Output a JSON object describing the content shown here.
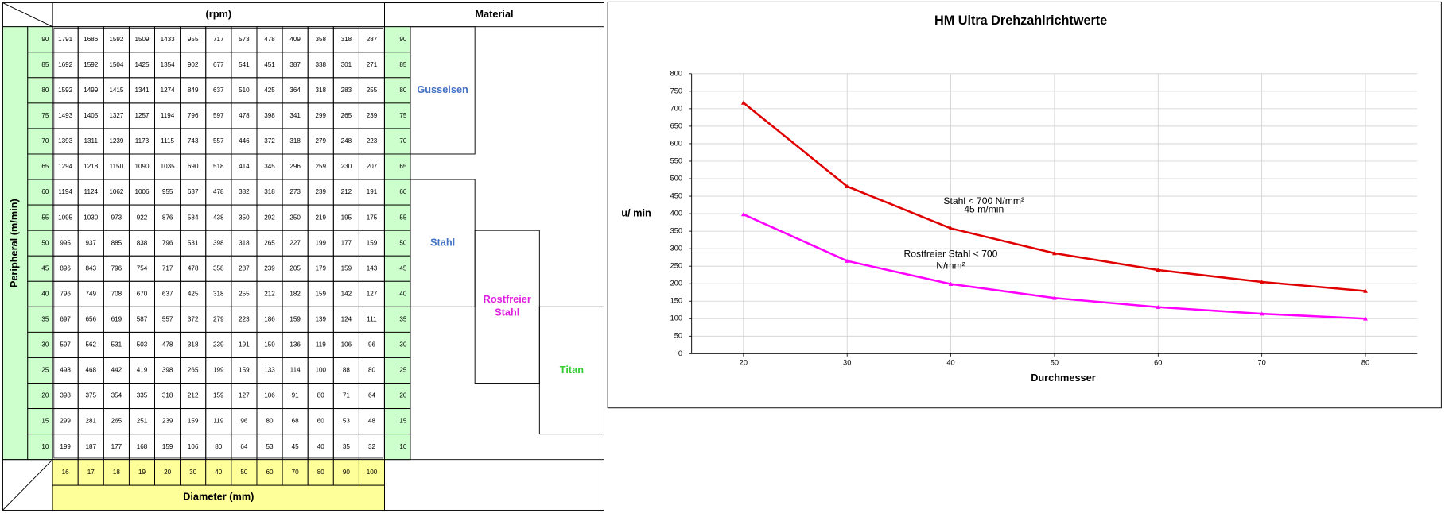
{
  "table": {
    "header_rpm": "(rpm)",
    "header_material": "Material",
    "speed_label": "Peripheral   (m/min)",
    "diameter_label": "Diameter  (mm)",
    "speeds": [
      90,
      85,
      80,
      75,
      70,
      65,
      60,
      55,
      50,
      45,
      40,
      35,
      30,
      25,
      20,
      15,
      10
    ],
    "diameters": [
      16,
      17,
      18,
      19,
      20,
      30,
      40,
      50,
      60,
      70,
      80,
      90,
      100
    ],
    "rows": [
      [
        1791,
        1686,
        1592,
        1509,
        1433,
        955,
        717,
        573,
        478,
        409,
        358,
        318,
        287
      ],
      [
        1692,
        1592,
        1504,
        1425,
        1354,
        902,
        677,
        541,
        451,
        387,
        338,
        301,
        271
      ],
      [
        1592,
        1499,
        1415,
        1341,
        1274,
        849,
        637,
        510,
        425,
        364,
        318,
        283,
        255
      ],
      [
        1493,
        1405,
        1327,
        1257,
        1194,
        796,
        597,
        478,
        398,
        341,
        299,
        265,
        239
      ],
      [
        1393,
        1311,
        1239,
        1173,
        1115,
        743,
        557,
        446,
        372,
        318,
        279,
        248,
        223
      ],
      [
        1294,
        1218,
        1150,
        1090,
        1035,
        690,
        518,
        414,
        345,
        296,
        259,
        230,
        207
      ],
      [
        1194,
        1124,
        1062,
        1006,
        955,
        637,
        478,
        382,
        318,
        273,
        239,
        212,
        191
      ],
      [
        1095,
        1030,
        973,
        922,
        876,
        584,
        438,
        350,
        292,
        250,
        219,
        195,
        175
      ],
      [
        995,
        937,
        885,
        838,
        796,
        531,
        398,
        318,
        265,
        227,
        199,
        177,
        159
      ],
      [
        896,
        843,
        796,
        754,
        717,
        478,
        358,
        287,
        239,
        205,
        179,
        159,
        143
      ],
      [
        796,
        749,
        708,
        670,
        637,
        425,
        318,
        255,
        212,
        182,
        159,
        142,
        127
      ],
      [
        697,
        656,
        619,
        587,
        557,
        372,
        279,
        223,
        186,
        159,
        139,
        124,
        111
      ],
      [
        597,
        562,
        531,
        503,
        478,
        318,
        239,
        191,
        159,
        136,
        119,
        106,
        96
      ],
      [
        498,
        468,
        442,
        419,
        398,
        265,
        199,
        159,
        133,
        114,
        100,
        88,
        80
      ],
      [
        398,
        375,
        354,
        335,
        318,
        212,
        159,
        127,
        106,
        91,
        80,
        71,
        64
      ],
      [
        299,
        281,
        265,
        251,
        239,
        159,
        119,
        96,
        80,
        68,
        60,
        53,
        48
      ],
      [
        199,
        187,
        177,
        168,
        159,
        106,
        80,
        64,
        53,
        45,
        40,
        35,
        32
      ]
    ],
    "materials": [
      {
        "label": "Gusseisen",
        "color": "#4472c4"
      },
      {
        "label": "Stahl",
        "color": "#4472c4"
      },
      {
        "label": "Rostfreier Stahl",
        "color": "#e020e0"
      },
      {
        "label": "Titan",
        "color": "#33cc33"
      }
    ]
  },
  "chart_data": {
    "type": "line",
    "title": "HM Ultra Drehzahlrichtwerte",
    "x_label": "Durchmesser",
    "y_label": "u/ min",
    "x": [
      20,
      30,
      40,
      50,
      60,
      70,
      80
    ],
    "xlim": [
      15,
      85
    ],
    "xticks": [
      20,
      30,
      40,
      50,
      60,
      70,
      80
    ],
    "ylim": [
      0,
      800
    ],
    "yticks": [
      0,
      50,
      100,
      150,
      200,
      250,
      300,
      350,
      400,
      450,
      500,
      550,
      600,
      650,
      700,
      750,
      800
    ],
    "grid": true,
    "series": [
      {
        "color": "#e00000",
        "values": [
          717,
          478,
          358,
          287,
          239,
          205,
          179
        ]
      },
      {
        "color": "#ff00ff",
        "values": [
          398,
          265,
          199,
          159,
          133,
          114,
          100
        ]
      }
    ],
    "annotations": [
      "Stahl < 700 N/mm²",
      "45 m/min",
      "Rostfreier Stahl < 700",
      "N/mm²"
    ]
  }
}
